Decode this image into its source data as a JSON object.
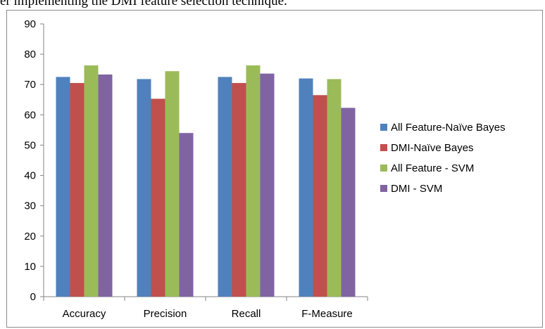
{
  "caption": "er implementing the DMI feature selection technique.",
  "chart_data": {
    "type": "bar",
    "categories": [
      "Accuracy",
      "Precision",
      "Recall",
      "F-Measure"
    ],
    "series": [
      {
        "name": "All Feature-Naïve Bayes",
        "color": "#4f81bd",
        "values": [
          72.5,
          71.8,
          72.5,
          72.0
        ]
      },
      {
        "name": "DMI-Naïve Bayes",
        "color": "#c0504d",
        "values": [
          70.5,
          65.3,
          70.5,
          66.5
        ]
      },
      {
        "name": "All Feature - SVM",
        "color": "#9bbb59",
        "values": [
          76.3,
          74.4,
          76.3,
          71.8
        ]
      },
      {
        "name": "DMI - SVM",
        "color": "#8064a2",
        "values": [
          73.3,
          54.0,
          73.6,
          62.3
        ]
      }
    ],
    "yticks": [
      "0",
      "10",
      "20",
      "30",
      "40",
      "50",
      "60",
      "70",
      "80",
      "90"
    ],
    "ylim": [
      0,
      90
    ],
    "grid": false,
    "legend": "right"
  }
}
